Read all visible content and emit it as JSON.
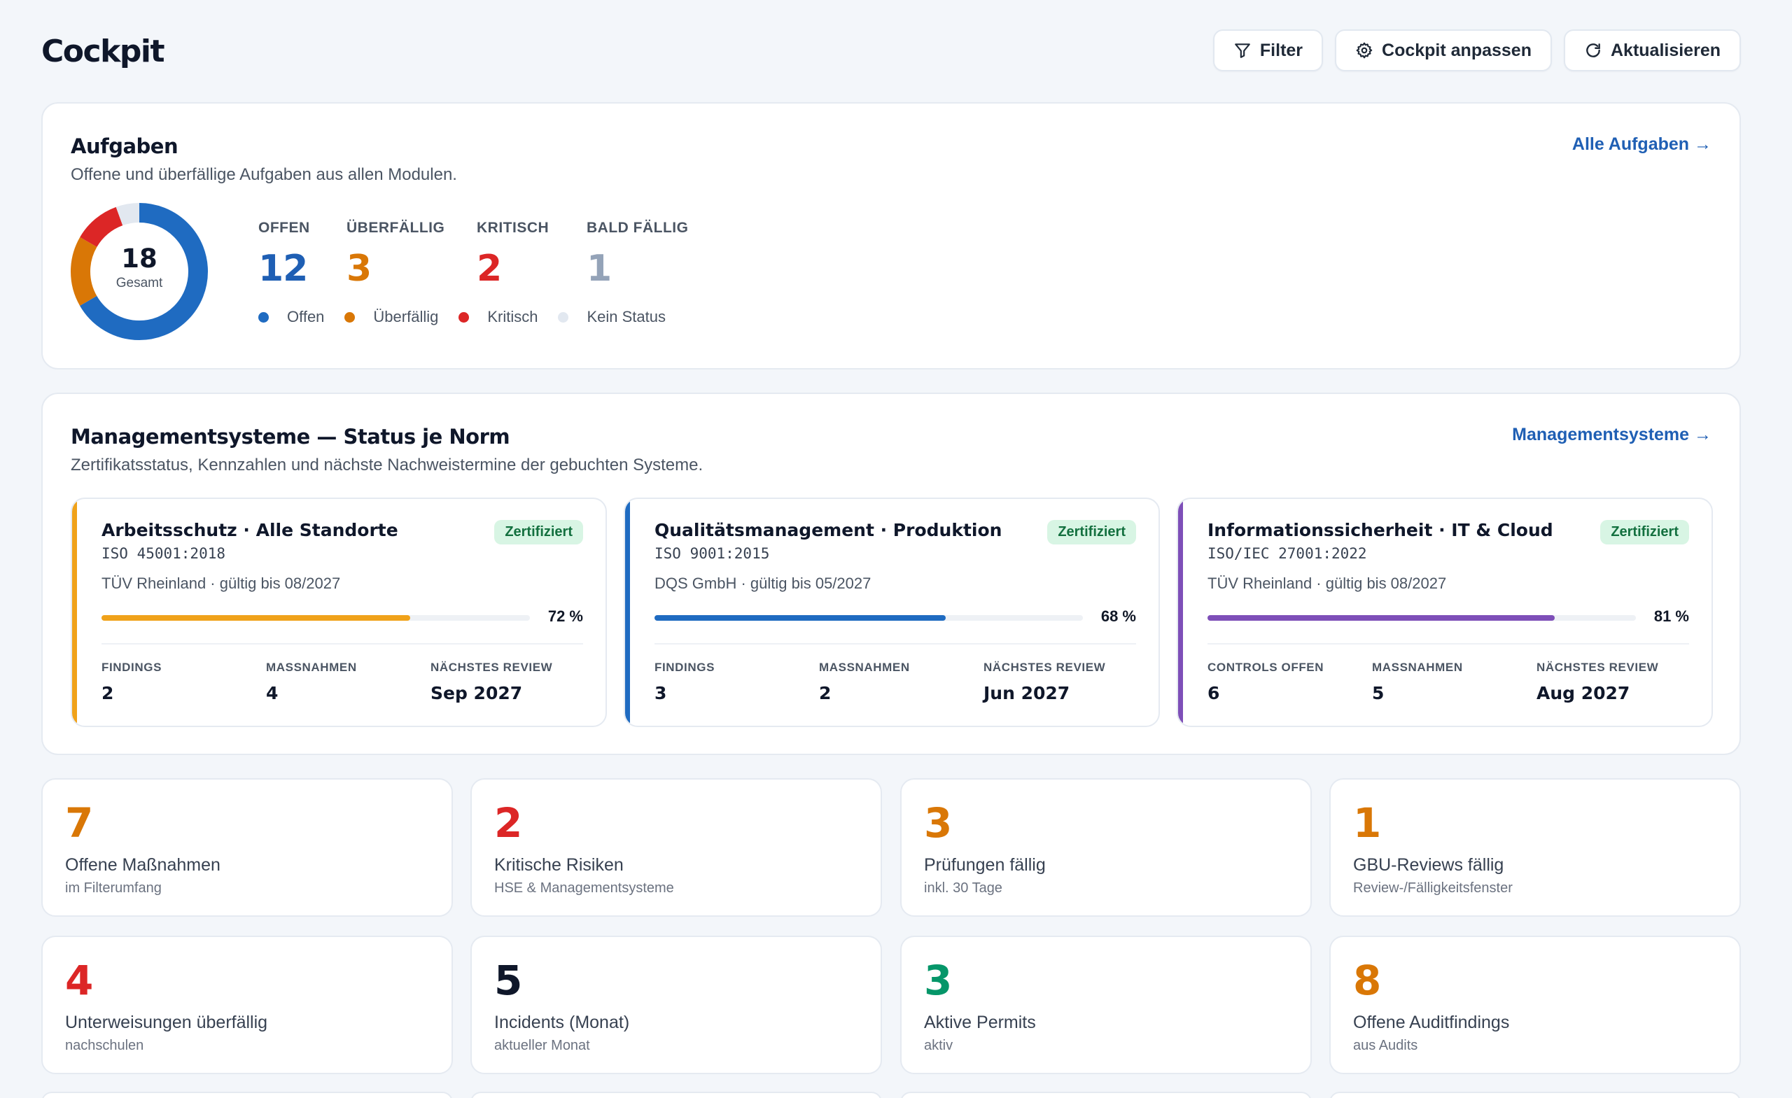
{
  "header": {
    "title": "Cockpit",
    "buttons": {
      "filter": "Filter",
      "customize": "Cockpit anpassen",
      "refresh": "Aktualisieren"
    }
  },
  "tasks": {
    "title": "Aufgaben",
    "subtitle": "Offene und überfällige Aufgaben aus allen Modulen.",
    "link": "Alle Aufgaben →",
    "total": "18",
    "total_label": "Gesamt",
    "stats": [
      {
        "label": "OFFEN",
        "value": "12",
        "color": "#1f5fb4"
      },
      {
        "label": "ÜBERFÄLLIG",
        "value": "3",
        "color": "#d97706"
      },
      {
        "label": "KRITISCH",
        "value": "2",
        "color": "#dc2626"
      },
      {
        "label": "BALD FÄLLIG",
        "value": "1",
        "color": "#94a3b8"
      }
    ],
    "legend": [
      {
        "label": "Offen",
        "color": "#1f6bc1"
      },
      {
        "label": "Überfällig",
        "color": "#d97706"
      },
      {
        "label": "Kritisch",
        "color": "#dc2626"
      },
      {
        "label": "Kein Status",
        "color": "#e2e8f0"
      }
    ],
    "donut": [
      {
        "name": "Offen",
        "value": 12,
        "color": "#1f6bc1"
      },
      {
        "name": "Überfällig",
        "value": 3,
        "color": "#d97706"
      },
      {
        "name": "Kritisch",
        "value": 2,
        "color": "#dc2626"
      },
      {
        "name": "Kein Status",
        "value": 1,
        "color": "#e2e8f0"
      }
    ]
  },
  "systems": {
    "title": "Managementsysteme — Status je Norm",
    "subtitle": "Zertifikatsstatus, Kennzahlen und nächste Nachweistermine der gebuchten Systeme.",
    "link": "Managementsysteme →",
    "items": [
      {
        "name": "Arbeitsschutz · Alle Standorte",
        "norm": "ISO 45001:2018",
        "cert": "TÜV Rheinland · gültig bis 08/2027",
        "badge": "Zertifiziert",
        "progress": 72,
        "progress_label": "72 %",
        "color": "#f0a21a",
        "kpis": [
          {
            "label": "FINDINGS",
            "value": "2"
          },
          {
            "label": "MASSNAHMEN",
            "value": "4"
          },
          {
            "label": "NÄCHSTES REVIEW",
            "value": "Sep 2027"
          }
        ]
      },
      {
        "name": "Qualitätsmanagement · Produktion",
        "norm": "ISO 9001:2015",
        "cert": "DQS GmbH · gültig bis 05/2027",
        "badge": "Zertifiziert",
        "progress": 68,
        "progress_label": "68 %",
        "color": "#1f6bc1",
        "kpis": [
          {
            "label": "FINDINGS",
            "value": "3"
          },
          {
            "label": "MASSNAHMEN",
            "value": "2"
          },
          {
            "label": "NÄCHSTES REVIEW",
            "value": "Jun 2027"
          }
        ]
      },
      {
        "name": "Informationssicherheit · IT & Cloud",
        "norm": "ISO/IEC 27001:2022",
        "cert": "TÜV Rheinland · gültig bis 08/2027",
        "badge": "Zertifiziert",
        "progress": 81,
        "progress_label": "81 %",
        "color": "#7e4fb8",
        "kpis": [
          {
            "label": "CONTROLS OFFEN",
            "value": "6"
          },
          {
            "label": "MASSNAHMEN",
            "value": "5"
          },
          {
            "label": "NÄCHSTES REVIEW",
            "value": "Aug 2027"
          }
        ]
      }
    ]
  },
  "tiles": [
    {
      "value": "7",
      "label": "Offene Maßnahmen",
      "sub": "im Filterumfang",
      "color": "#d97706"
    },
    {
      "value": "2",
      "label": "Kritische Risiken",
      "sub": "HSE & Managementsysteme",
      "color": "#dc2626"
    },
    {
      "value": "3",
      "label": "Prüfungen fällig",
      "sub": "inkl. 30 Tage",
      "color": "#d97706"
    },
    {
      "value": "1",
      "label": "GBU-Reviews fällig",
      "sub": "Review-/Fälligkeitsfenster",
      "color": "#d97706"
    },
    {
      "value": "4",
      "label": "Unterweisungen überfällig",
      "sub": "nachschulen",
      "color": "#dc2626"
    },
    {
      "value": "5",
      "label": "Incidents (Monat)",
      "sub": "aktueller Monat",
      "color": "#0f172a"
    },
    {
      "value": "3",
      "label": "Aktive Permits",
      "sub": "aktiv",
      "color": "#059669"
    },
    {
      "value": "8",
      "label": "Offene Auditfindings",
      "sub": "aus Audits",
      "color": "#d97706"
    }
  ]
}
